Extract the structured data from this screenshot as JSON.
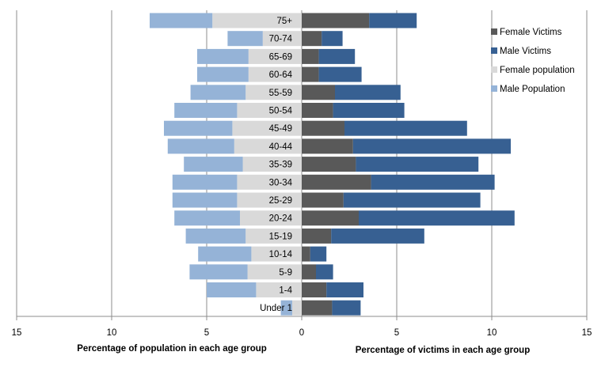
{
  "chart_data": {
    "type": "bar",
    "subtype": "population-pyramid",
    "title": "",
    "categories": [
      "Under 1",
      "1-4",
      "5-9",
      "10-14",
      "15-19",
      "20-24",
      "25-29",
      "30-34",
      "35-39",
      "40-44",
      "45-49",
      "50-54",
      "55-59",
      "60-64",
      "65-69",
      "70-74",
      "75+"
    ],
    "left_panel": {
      "xlabel": "Percentage of population in each age group",
      "xlim": [
        15,
        0
      ],
      "ticks": [
        "15",
        "10",
        "5",
        "0"
      ],
      "series": [
        {
          "name": "Female population",
          "color": "#d9d9d9",
          "values": [
            0.5,
            2.4,
            2.85,
            2.65,
            2.95,
            3.25,
            3.4,
            3.4,
            3.1,
            3.55,
            3.65,
            3.4,
            2.95,
            2.8,
            2.8,
            2.05,
            4.7
          ]
        },
        {
          "name": "Male Population",
          "color": "#95b3d7",
          "values": [
            0.6,
            2.6,
            3.05,
            2.8,
            3.15,
            3.45,
            3.4,
            3.4,
            3.1,
            3.5,
            3.6,
            3.3,
            2.9,
            2.7,
            2.7,
            1.85,
            3.3
          ]
        }
      ]
    },
    "right_panel": {
      "xlabel": "Percentage of victims in each age group",
      "xlim": [
        0,
        15
      ],
      "ticks": [
        "0",
        "5",
        "10",
        "15"
      ],
      "series": [
        {
          "name": "Female Victims",
          "color": "#595959",
          "values": [
            1.6,
            1.3,
            0.75,
            0.45,
            1.55,
            3.0,
            2.2,
            3.65,
            2.85,
            2.7,
            2.25,
            1.65,
            1.75,
            0.9,
            0.9,
            1.05,
            3.55
          ]
        },
        {
          "name": "Male Victims",
          "color": "#376092",
          "values": [
            1.5,
            1.95,
            0.9,
            0.85,
            4.9,
            8.2,
            7.2,
            6.5,
            6.45,
            8.3,
            6.45,
            3.75,
            3.45,
            2.25,
            1.9,
            1.1,
            2.5
          ]
        }
      ]
    },
    "legend": {
      "placement": "right",
      "items": [
        "Female Victims",
        "Male Victims",
        "Female population",
        "Male Population"
      ]
    },
    "grid": true
  }
}
